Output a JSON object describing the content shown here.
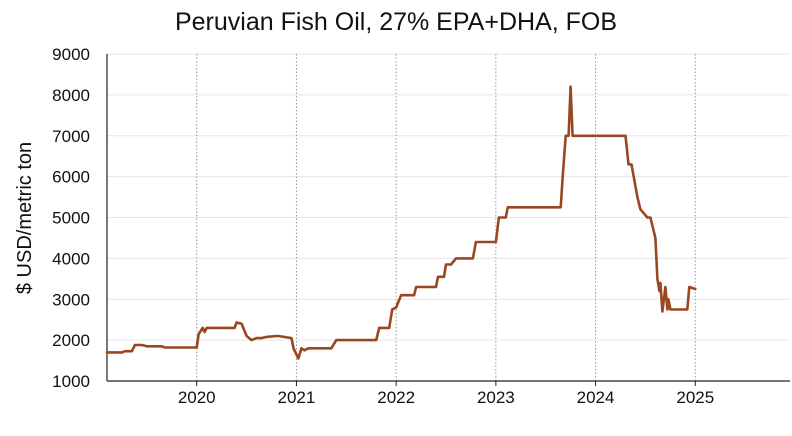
{
  "chart_data": {
    "type": "line",
    "title": "Peruvian Fish Oil, 27% EPA+DHA, FOB",
    "xlabel": "",
    "ylabel": "$ USD/metric ton",
    "ylim": [
      1000,
      9000
    ],
    "yticks": [
      1000,
      2000,
      3000,
      4000,
      5000,
      6000,
      7000,
      8000,
      9000
    ],
    "xlim": [
      2019.1,
      2025.95
    ],
    "xticks": [
      2020,
      2021,
      2022,
      2023,
      2024,
      2025
    ],
    "grid": {
      "x": "dotted",
      "y": "solid-light"
    },
    "legend": "none",
    "colors": {
      "line": "#9a4621",
      "grid_y": "#e6e6e6",
      "grid_x": "#999999",
      "axis": "#222222"
    },
    "series": [
      {
        "x": [
          2019.1,
          2019.25,
          2019.28,
          2019.35,
          2019.38,
          2019.45,
          2019.5,
          2019.65,
          2019.68,
          2020.0,
          2020.02,
          2020.06,
          2020.08,
          2020.1,
          2020.14,
          2020.38,
          2020.4,
          2020.45,
          2020.5,
          2020.55,
          2020.6,
          2020.65,
          2020.7,
          2020.8,
          2020.82,
          2020.95,
          2020.97,
          2021.02,
          2021.05,
          2021.08,
          2021.12,
          2021.15,
          2021.35,
          2021.4,
          2021.45,
          2021.8,
          2021.83,
          2021.93,
          2021.96,
          2022.0,
          2022.05,
          2022.1,
          2022.18,
          2022.2,
          2022.4,
          2022.42,
          2022.48,
          2022.5,
          2022.55,
          2022.6,
          2022.77,
          2022.8,
          2023.0,
          2023.03,
          2023.1,
          2023.12,
          2023.65,
          2023.67,
          2023.7,
          2023.73,
          2023.75,
          2023.77,
          2024.3,
          2024.33,
          2024.36,
          2024.42,
          2024.45,
          2024.52,
          2024.55,
          2024.6,
          2024.62,
          2024.64,
          2024.65,
          2024.67,
          2024.7,
          2024.72,
          2024.73,
          2024.75,
          2024.92,
          2024.94,
          2025.0
        ],
        "values": [
          1700,
          1700,
          1730,
          1730,
          1880,
          1880,
          1850,
          1850,
          1820,
          1820,
          2150,
          2300,
          2200,
          2300,
          2300,
          2300,
          2430,
          2400,
          2100,
          2000,
          2050,
          2050,
          2080,
          2100,
          2100,
          2050,
          1800,
          1550,
          1800,
          1750,
          1800,
          1800,
          1800,
          2000,
          2000,
          2000,
          2300,
          2300,
          2750,
          2800,
          3100,
          3100,
          3100,
          3300,
          3300,
          3550,
          3550,
          3850,
          3850,
          4000,
          4000,
          4400,
          4400,
          5000,
          5000,
          5250,
          5250,
          6000,
          7000,
          7000,
          8200,
          7000,
          7000,
          6300,
          6300,
          5500,
          5200,
          5000,
          5000,
          4500,
          3500,
          3200,
          3400,
          2700,
          3300,
          2750,
          3000,
          2750,
          2750,
          3300,
          3250
        ]
      }
    ]
  }
}
